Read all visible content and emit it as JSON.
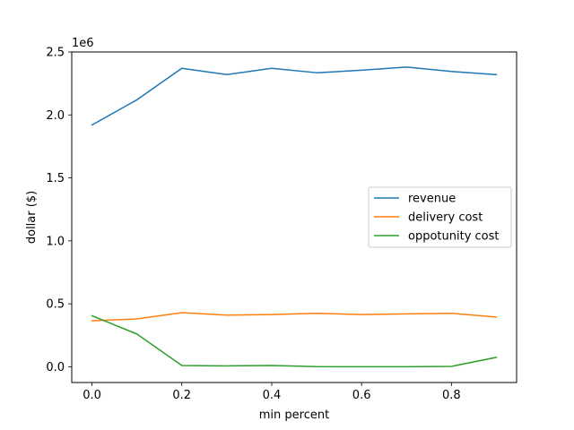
{
  "chart_data": {
    "type": "line",
    "title": "",
    "xlabel": "min percent",
    "ylabel": "dollar ($)",
    "y_offset_label": "1e6",
    "x": [
      0.0,
      0.1,
      0.2,
      0.3,
      0.4,
      0.5,
      0.6,
      0.7,
      0.8,
      0.9
    ],
    "xlim": [
      -0.045,
      0.945
    ],
    "ylim": [
      -0.125,
      2.5
    ],
    "x_ticks": [
      0.0,
      0.2,
      0.4,
      0.6,
      0.8
    ],
    "x_tick_labels": [
      "0.0",
      "0.2",
      "0.4",
      "0.6",
      "0.8"
    ],
    "y_ticks": [
      0.0,
      0.5,
      1.0,
      1.5,
      2.0,
      2.5
    ],
    "y_tick_labels": [
      "0.0",
      "0.5",
      "1.0",
      "1.5",
      "2.0",
      "2.5"
    ],
    "grid": false,
    "legend_position": "center-right",
    "series": [
      {
        "name": "revenue",
        "color": "#1f77b4",
        "values": [
          1.92,
          2.12,
          2.37,
          2.32,
          2.37,
          2.335,
          2.355,
          2.38,
          2.345,
          2.32
        ]
      },
      {
        "name": "delivery cost",
        "color": "#ff7f0e",
        "values": [
          0.365,
          0.38,
          0.43,
          0.41,
          0.415,
          0.425,
          0.415,
          0.42,
          0.425,
          0.395
        ]
      },
      {
        "name": "oppotunity cost",
        "color": "#2ca02c",
        "values": [
          0.405,
          0.26,
          0.01,
          0.007,
          0.01,
          0.001,
          0.0,
          0.0,
          0.003,
          0.075
        ]
      }
    ]
  }
}
